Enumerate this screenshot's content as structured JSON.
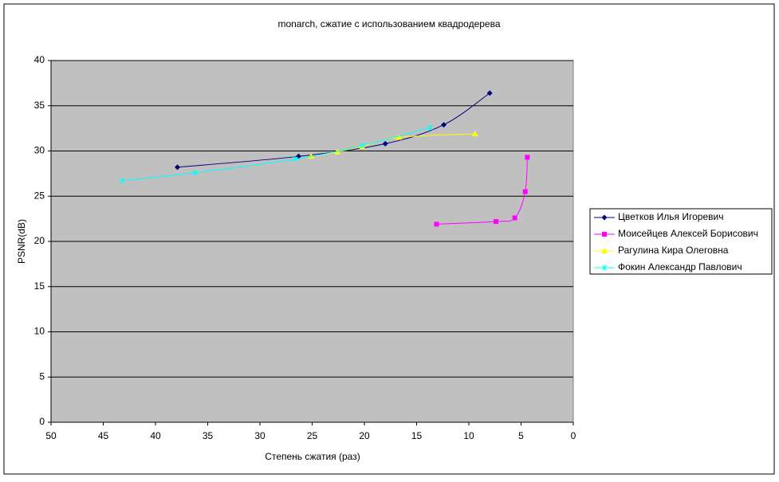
{
  "chart_data": {
    "type": "line",
    "title": "monarch, сжатие с использованием квадродерева",
    "x_label": "Степень сжатия (раз)",
    "y_label": "PSNR(dB)",
    "xlim": [
      50,
      0
    ],
    "xticks": [
      50,
      45,
      40,
      35,
      30,
      25,
      20,
      15,
      10,
      5,
      0
    ],
    "ylim": [
      0,
      40
    ],
    "yticks": [
      0,
      5,
      10,
      15,
      20,
      25,
      30,
      35,
      40
    ],
    "grid": true,
    "legend": "right",
    "smooth": true,
    "series": [
      {
        "name": "Цветков Илья Игоревич",
        "color": "#000080",
        "marker": "diamond",
        "x": [
          37.9,
          26.3,
          18.0,
          12.4,
          8.0
        ],
        "values": [
          28.2,
          29.4,
          30.8,
          32.9,
          36.4
        ]
      },
      {
        "name": "Моисейцев Алексей Борисович",
        "color": "#ff00ff",
        "marker": "square",
        "x": [
          13.1,
          7.4,
          5.6,
          4.6,
          4.4
        ],
        "values": [
          21.9,
          22.2,
          22.6,
          25.5,
          29.3
        ]
      },
      {
        "name": "Рагулина Кира Олеговна",
        "color": "#ffff00",
        "marker": "triangle",
        "x": [
          25.1,
          22.6,
          20.2,
          16.7,
          9.4
        ],
        "values": [
          29.4,
          29.9,
          30.5,
          31.5,
          31.9
        ]
      },
      {
        "name": "Фокин Александр Павлович",
        "color": "#00ffff",
        "marker": "x",
        "x": [
          43.2,
          36.2,
          26.6,
          20.2,
          13.7
        ],
        "values": [
          26.7,
          27.6,
          29.1,
          30.6,
          32.6
        ]
      }
    ]
  }
}
